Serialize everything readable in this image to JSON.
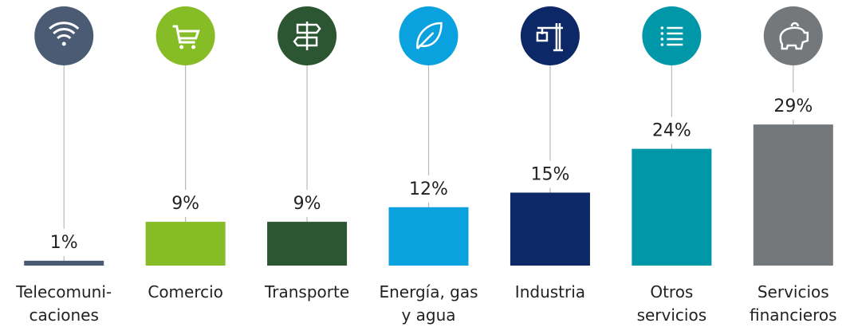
{
  "chart_data": {
    "type": "bar",
    "categories": [
      "Telecomuni-\ncaciones",
      "Comercio",
      "Transporte",
      "Energía, gas\ny agua",
      "Industria",
      "Otros\nservicios",
      "Servicios\nfinancieros"
    ],
    "values": [
      1,
      9,
      9,
      12,
      15,
      24,
      29
    ],
    "value_labels": [
      "1%",
      "9%",
      "9%",
      "12%",
      "15%",
      "24%",
      "29%"
    ],
    "colors": [
      "#4b5b73",
      "#86bc25",
      "#2c5532",
      "#0aa2de",
      "#0c2866",
      "#0097a9",
      "#75787b"
    ],
    "ylim": [
      0,
      30
    ]
  }
}
